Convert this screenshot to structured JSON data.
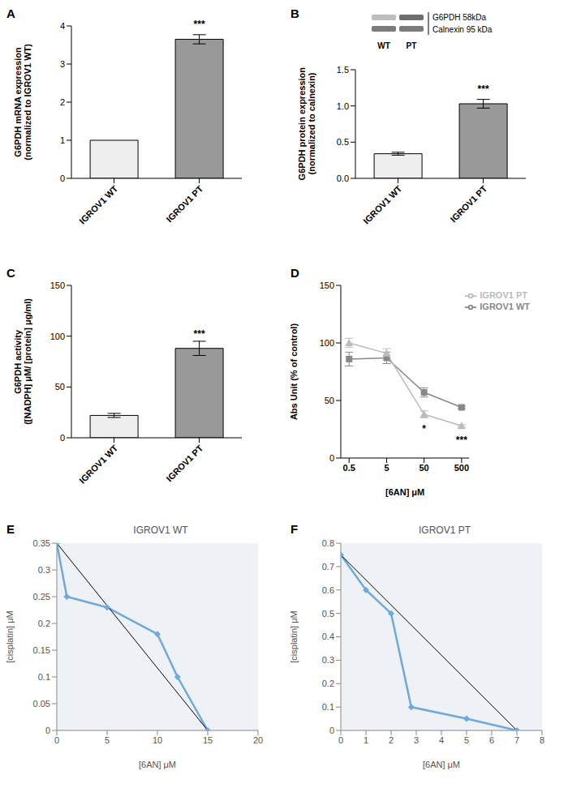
{
  "chart_data": [
    {
      "panel": "A",
      "type": "bar",
      "categories": [
        "IGROV1 WT",
        "IGROV1 PT"
      ],
      "values": [
        1,
        3.65
      ],
      "error": [
        0,
        0.12
      ],
      "colors": [
        "#eeeeee",
        "#999999"
      ],
      "significance": [
        null,
        "***"
      ],
      "ylabel": [
        "G6PDH mRNA expression",
        "(normalized to IGROV1 WT)"
      ],
      "ylim": [
        0,
        4
      ],
      "yticks": [
        0,
        1,
        2,
        3,
        4
      ]
    },
    {
      "panel": "B",
      "type": "bar",
      "categories": [
        "IGROV1 WT",
        "IGROV1 PT"
      ],
      "values": [
        0.34,
        1.03
      ],
      "error": [
        0.02,
        0.06
      ],
      "colors": [
        "#eeeeee",
        "#999999"
      ],
      "significance": [
        null,
        "***"
      ],
      "ylabel": [
        "G6PDH protein expression",
        "(normalized to calnexin)"
      ],
      "ylim": [
        0,
        1.5
      ],
      "yticks": [
        {
          "value": 0,
          "label": "0.0"
        },
        {
          "value": 0.5,
          "label": "0.5"
        },
        {
          "value": 1,
          "label": "1.0"
        },
        {
          "value": 1.5,
          "label": "1.5"
        }
      ],
      "inset": {
        "bands": [
          "G6PDH 58kDa",
          "Calnexin 95 kDa"
        ],
        "lanes": [
          "WT",
          "PT"
        ]
      }
    },
    {
      "panel": "C",
      "type": "bar",
      "categories": [
        "IGROV1 WT",
        "IGROV1 PT"
      ],
      "values": [
        22,
        88
      ],
      "error": [
        2,
        7
      ],
      "colors": [
        "#eeeeee",
        "#999999"
      ],
      "significance": [
        null,
        "***"
      ],
      "ylabel": [
        "G6PDH activity",
        "([NADPH] μM/ [protein] μg/ml)"
      ],
      "ylim": [
        0,
        150
      ],
      "yticks": [
        0,
        50,
        100,
        150
      ]
    },
    {
      "panel": "D",
      "type": "line",
      "x": [
        0.5,
        5,
        50,
        500
      ],
      "log": "x",
      "xlim": [
        0.3,
        800
      ],
      "xticks": [
        0.5,
        5,
        50,
        500
      ],
      "xlabel": "[6AN] μM",
      "ylabel": "Abs Unit (% of control)",
      "ylim": [
        0,
        150
      ],
      "yticks": [
        0,
        50,
        100,
        150
      ],
      "legend": "upper right",
      "series": [
        {
          "name": "IGROV1 WT",
          "color": "#888888",
          "marker": "square",
          "values": [
            86,
            87,
            57,
            44
          ],
          "error": [
            6,
            5,
            4,
            1
          ]
        },
        {
          "name": "IGROV1 PT",
          "color": "#bbbbbb",
          "marker": "triangle",
          "values": [
            100,
            91,
            38,
            28
          ],
          "error": [
            4,
            4,
            3,
            1
          ],
          "significance": [
            null,
            null,
            "*",
            "***"
          ]
        }
      ]
    },
    {
      "panel": "E",
      "type": "line",
      "title": "IGROV1 WT",
      "xlabel": "[6AN] μM",
      "ylabel": "[cisplatin] μM",
      "xlim": [
        0,
        20
      ],
      "xticks": [
        0,
        5,
        10,
        15,
        20
      ],
      "ylim": [
        0,
        0.35
      ],
      "yticks": [
        0,
        0.05,
        0.1,
        0.15,
        0.2,
        0.25,
        0.3,
        0.35
      ],
      "series": [
        {
          "color": "#6fa8dc",
          "marker": "diamond",
          "x": [
            0,
            1,
            5,
            10,
            12,
            15
          ],
          "values": [
            0.35,
            0.25,
            0.23,
            0.18,
            0.1,
            0
          ]
        },
        {
          "color": "#000000",
          "x": [
            0,
            15
          ],
          "values": [
            0.35,
            0
          ]
        }
      ]
    },
    {
      "panel": "F",
      "type": "line",
      "title": "IGROV1 PT",
      "xlabel": "[6AN] μM",
      "ylabel": "[cisplatin] μM",
      "xlim": [
        0,
        8
      ],
      "xticks": [
        0,
        1,
        2,
        3,
        4,
        5,
        6,
        7,
        8
      ],
      "ylim": [
        0,
        0.8
      ],
      "yticks": [
        0,
        0.1,
        0.2,
        0.3,
        0.4,
        0.5,
        0.6,
        0.7,
        0.8
      ],
      "series": [
        {
          "color": "#6fa8dc",
          "marker": "diamond",
          "x": [
            0,
            1,
            2,
            2.8,
            5,
            7
          ],
          "values": [
            0.75,
            0.6,
            0.5,
            0.1,
            0.05,
            0
          ]
        },
        {
          "color": "#000000",
          "x": [
            0,
            7
          ],
          "values": [
            0.75,
            0
          ]
        }
      ]
    }
  ]
}
